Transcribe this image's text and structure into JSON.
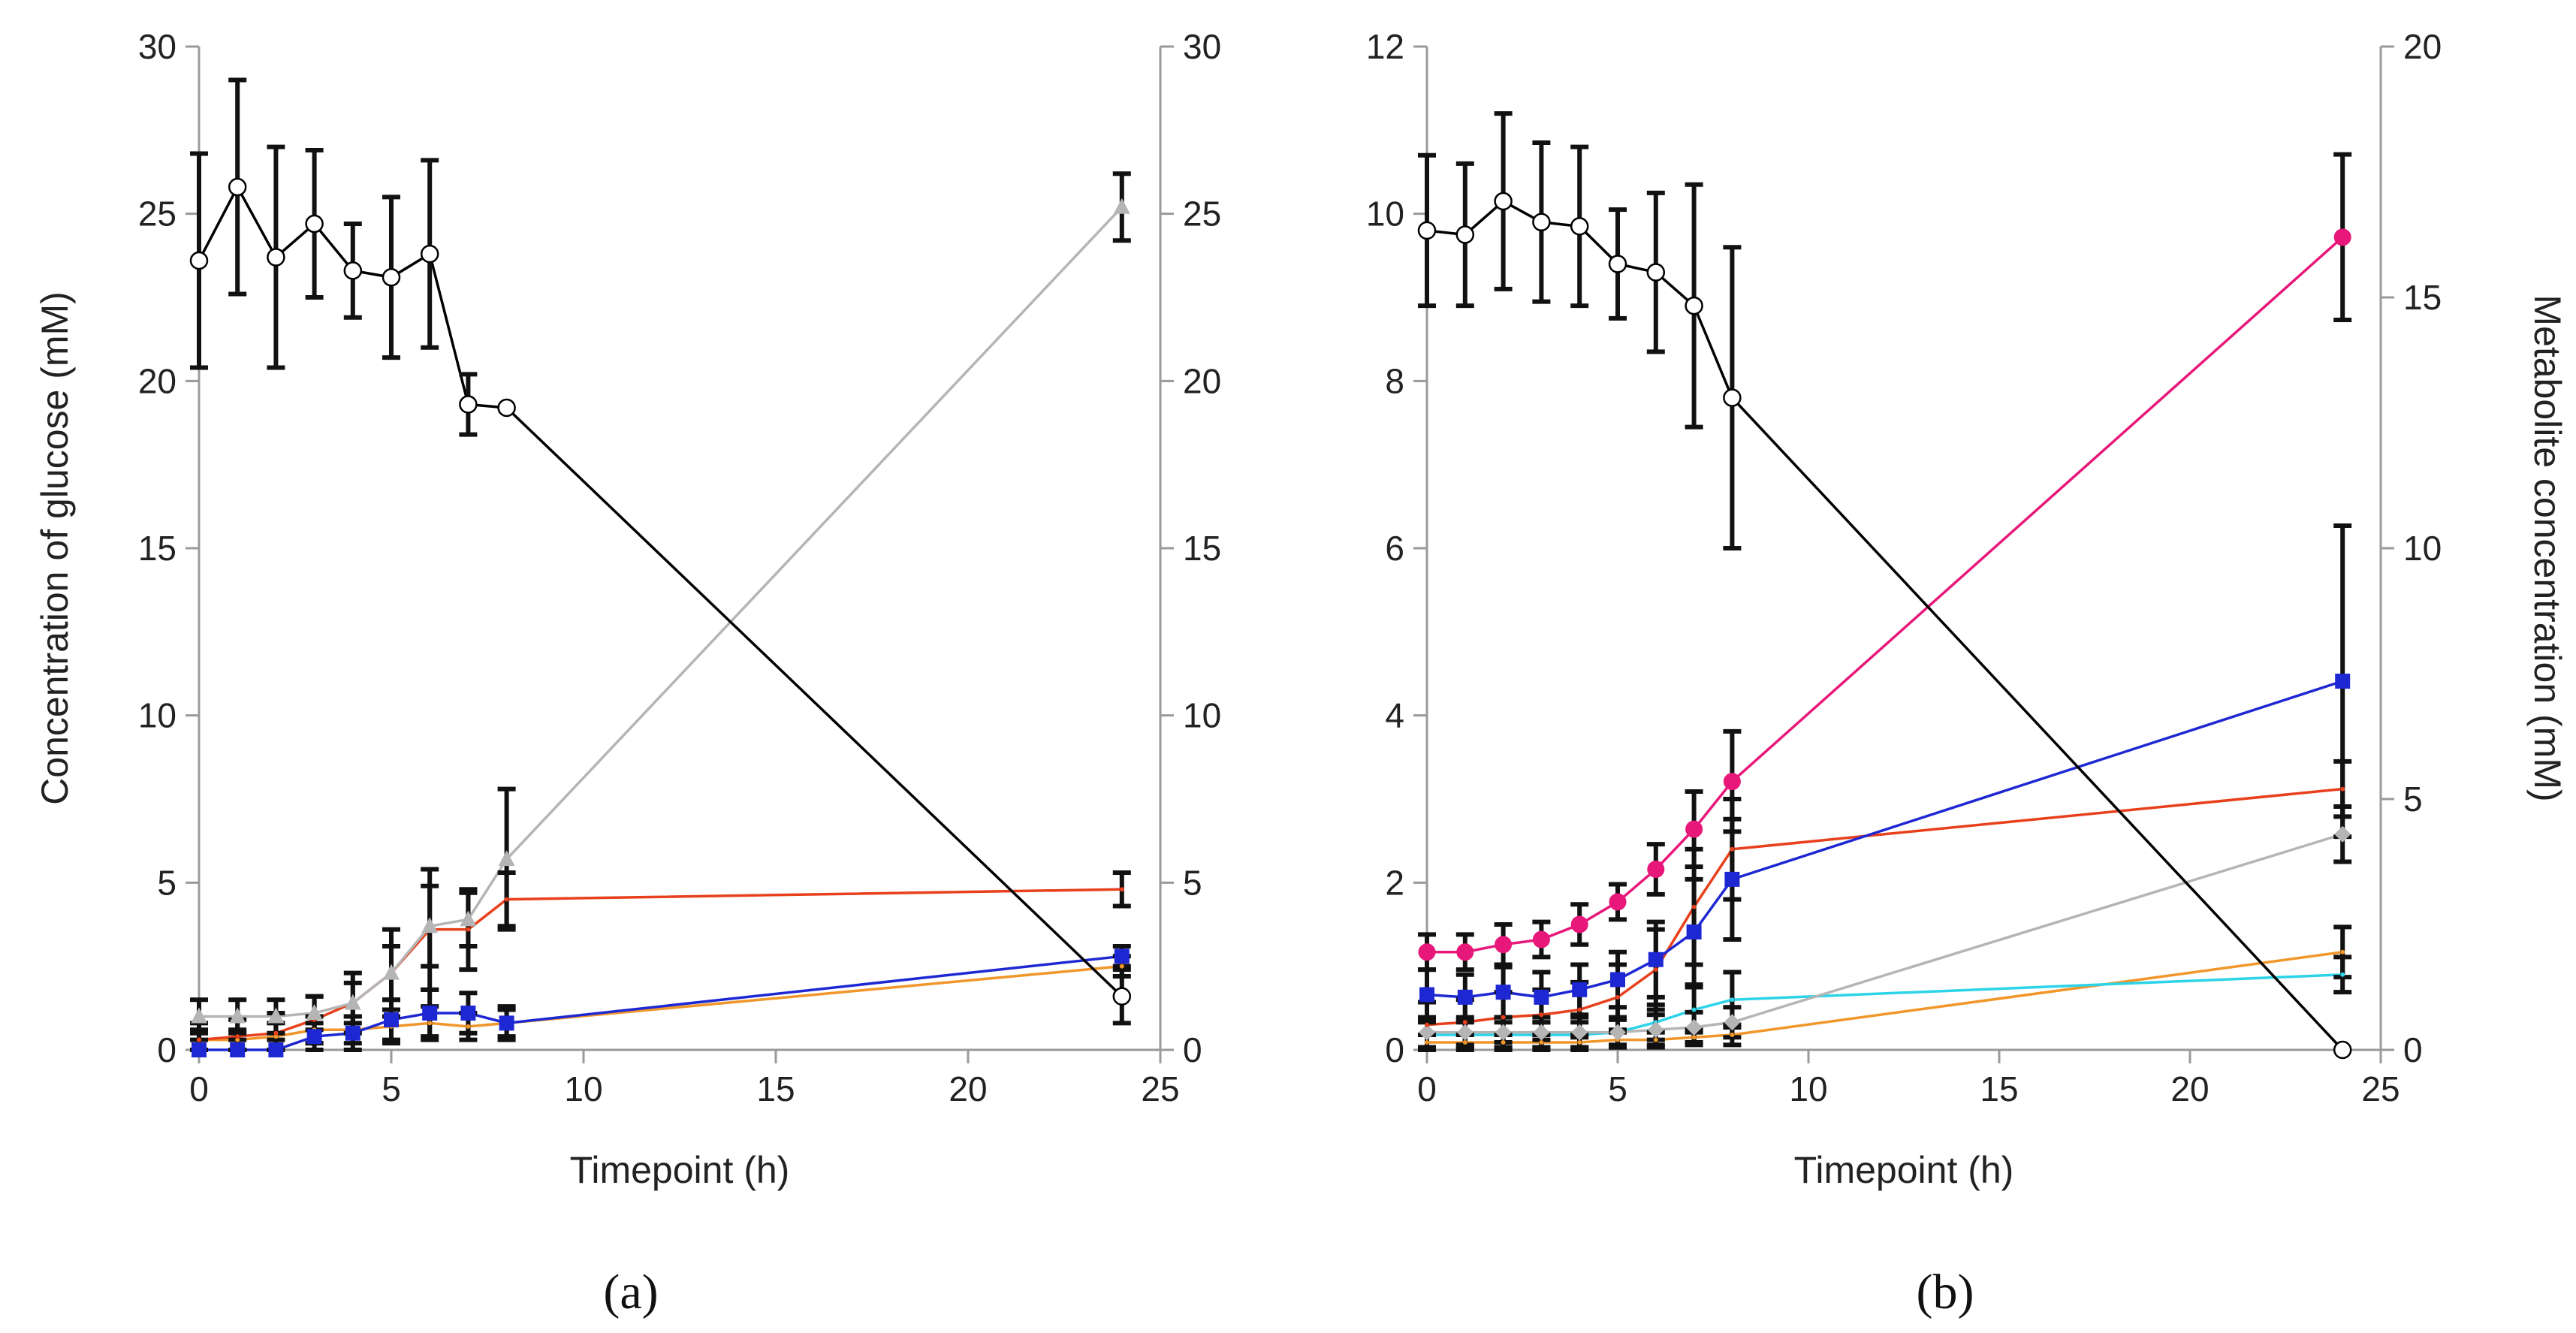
{
  "chart_data": [
    {
      "type": "line",
      "panel_label": "(a)",
      "xlabel": "Timepoint (h)",
      "ylabel_left": "Concentration of glucose (mM)",
      "ylabel_right": "",
      "xlim": [
        0,
        25
      ],
      "ylim_left": [
        0,
        30
      ],
      "ylim_right": [
        0,
        30
      ],
      "xticks": [
        "0",
        "5",
        "10",
        "15",
        "20",
        "25"
      ],
      "yticks_left": [
        "0",
        "5",
        "10",
        "15",
        "20",
        "25",
        "30"
      ],
      "yticks_right": [
        "0",
        "5",
        "10",
        "15",
        "20",
        "25",
        "30"
      ],
      "series": [
        {
          "name": "glucose",
          "axis": "left",
          "color": "#000000",
          "marker": "circle-open",
          "x": [
            0,
            1,
            2,
            3,
            4,
            5,
            6,
            7,
            8,
            24
          ],
          "y": [
            23.6,
            25.8,
            23.7,
            24.7,
            23.3,
            23.1,
            23.8,
            19.3,
            19.2,
            1.6
          ],
          "err": [
            3.2,
            3.2,
            3.3,
            2.2,
            1.4,
            2.4,
            2.8,
            0.9,
            0,
            0.8
          ]
        },
        {
          "name": "grey metabolite",
          "axis": "right",
          "color": "#b5b5b5",
          "marker": "triangle",
          "x": [
            0,
            1,
            2,
            3,
            4,
            5,
            6,
            7,
            8,
            24
          ],
          "y": [
            1.0,
            1.0,
            1.0,
            1.1,
            1.4,
            2.3,
            3.7,
            3.9,
            5.7,
            25.2
          ],
          "err": [
            0.5,
            0.5,
            0.5,
            0.5,
            0.6,
            0.8,
            1.2,
            0.8,
            2.1,
            1.0
          ]
        },
        {
          "name": "red metabolite",
          "axis": "right",
          "color": "#e8401c",
          "marker": "none",
          "x": [
            0,
            1,
            2,
            3,
            4,
            5,
            6,
            7,
            8,
            24
          ],
          "y": [
            0.3,
            0.4,
            0.5,
            0.9,
            1.4,
            2.3,
            3.6,
            3.6,
            4.5,
            4.8
          ],
          "err": [
            0.5,
            0.5,
            0.6,
            0.7,
            0.9,
            1.3,
            1.8,
            1.2,
            0.8,
            0.5
          ]
        },
        {
          "name": "blue metabolite",
          "axis": "right",
          "color": "#1e28d2",
          "marker": "square",
          "x": [
            0,
            1,
            2,
            3,
            4,
            5,
            6,
            7,
            8,
            24
          ],
          "y": [
            0.0,
            0.0,
            0.0,
            0.4,
            0.5,
            0.9,
            1.1,
            1.1,
            0.8,
            2.8
          ],
          "err": [
            0.3,
            0.3,
            0.3,
            0.4,
            0.5,
            0.6,
            0.7,
            0.6,
            0.5,
            0.3
          ]
        },
        {
          "name": "orange metabolite",
          "axis": "right",
          "color": "#f0962a",
          "marker": "none",
          "x": [
            0,
            1,
            2,
            3,
            4,
            5,
            6,
            7,
            8,
            24
          ],
          "y": [
            0.3,
            0.3,
            0.4,
            0.6,
            0.6,
            0.7,
            0.8,
            0.7,
            0.8,
            2.5
          ],
          "err": [
            0.3,
            0.3,
            0.4,
            0.4,
            0.4,
            0.5,
            0.5,
            0.4,
            0.4,
            0.3
          ]
        }
      ]
    },
    {
      "type": "line",
      "panel_label": "(b)",
      "xlabel": "Timepoint (h)",
      "ylabel_left": "",
      "ylabel_right": "Metabolite concentration (mM)",
      "xlim": [
        0,
        25
      ],
      "ylim_left": [
        0,
        12
      ],
      "ylim_right": [
        0,
        20
      ],
      "xticks": [
        "0",
        "5",
        "10",
        "15",
        "20",
        "25"
      ],
      "yticks_left": [
        "0",
        "2",
        "4",
        "6",
        "8",
        "10",
        "12"
      ],
      "yticks_right": [
        "0",
        "5",
        "10",
        "15",
        "20"
      ],
      "series": [
        {
          "name": "glucose",
          "axis": "left",
          "color": "#000000",
          "marker": "circle-open",
          "x": [
            0,
            1,
            2,
            3,
            4,
            5,
            6,
            7,
            8,
            24
          ],
          "y": [
            9.8,
            9.75,
            10.15,
            9.9,
            9.85,
            9.4,
            9.3,
            8.9,
            7.8,
            0.0
          ],
          "err": [
            0.9,
            0.85,
            1.05,
            0.95,
            0.95,
            0.65,
            0.95,
            1.45,
            1.8,
            0
          ]
        },
        {
          "name": "pink metabolite",
          "axis": "right",
          "color": "#e8177a",
          "marker": "circle",
          "x": [
            0,
            1,
            2,
            3,
            4,
            5,
            6,
            7,
            8,
            24
          ],
          "y": [
            1.95,
            1.95,
            2.1,
            2.2,
            2.5,
            2.95,
            3.6,
            4.4,
            5.35,
            16.2
          ],
          "err": [
            0.35,
            0.35,
            0.4,
            0.35,
            0.4,
            0.35,
            0.5,
            0.75,
            1.0,
            1.65
          ]
        },
        {
          "name": "blue metabolite",
          "axis": "right",
          "color": "#1e28d2",
          "marker": "square",
          "x": [
            0,
            1,
            2,
            3,
            4,
            5,
            6,
            7,
            8,
            24
          ],
          "y": [
            1.1,
            1.05,
            1.15,
            1.05,
            1.2,
            1.4,
            1.8,
            2.35,
            3.4,
            7.35
          ],
          "err": [
            0.5,
            0.45,
            0.5,
            0.5,
            0.5,
            0.55,
            0.75,
            1.05,
            1.2,
            3.1
          ]
        },
        {
          "name": "red metabolite",
          "axis": "right",
          "color": "#e8401c",
          "marker": "none",
          "x": [
            0,
            1,
            2,
            3,
            4,
            5,
            6,
            7,
            8,
            24
          ],
          "y": [
            0.5,
            0.55,
            0.65,
            0.7,
            0.8,
            1.05,
            1.6,
            2.85,
            4.0,
            5.2
          ],
          "err": [
            0.45,
            0.45,
            0.5,
            0.5,
            0.55,
            0.65,
            0.8,
            1.15,
            1.0,
            0.55
          ]
        },
        {
          "name": "grey metabolite",
          "axis": "right",
          "color": "#b5b5b5",
          "marker": "diamond",
          "x": [
            0,
            1,
            2,
            3,
            4,
            5,
            6,
            7,
            8,
            24
          ],
          "y": [
            0.35,
            0.35,
            0.35,
            0.35,
            0.35,
            0.35,
            0.4,
            0.45,
            0.55,
            4.3
          ],
          "err": [
            0.3,
            0.3,
            0.3,
            0.3,
            0.3,
            0.3,
            0.3,
            0.3,
            0.3,
            0.55
          ]
        },
        {
          "name": "cyan metabolite",
          "axis": "right",
          "color": "#2dd3e8",
          "marker": "none",
          "x": [
            0,
            1,
            2,
            3,
            4,
            5,
            6,
            7,
            8,
            24
          ],
          "y": [
            0.3,
            0.3,
            0.3,
            0.3,
            0.3,
            0.35,
            0.55,
            0.8,
            1.0,
            1.5
          ],
          "err": [
            0.25,
            0.25,
            0.25,
            0.25,
            0.25,
            0.25,
            0.35,
            0.45,
            0.55,
            0.35
          ]
        },
        {
          "name": "orange metabolite",
          "axis": "right",
          "color": "#f0962a",
          "marker": "none",
          "x": [
            0,
            1,
            2,
            3,
            4,
            5,
            6,
            7,
            8,
            24
          ],
          "y": [
            0.15,
            0.15,
            0.15,
            0.15,
            0.15,
            0.2,
            0.2,
            0.25,
            0.3,
            1.95
          ],
          "err": [
            0.15,
            0.15,
            0.15,
            0.15,
            0.15,
            0.15,
            0.15,
            0.15,
            0.2,
            0.5
          ]
        }
      ]
    }
  ]
}
